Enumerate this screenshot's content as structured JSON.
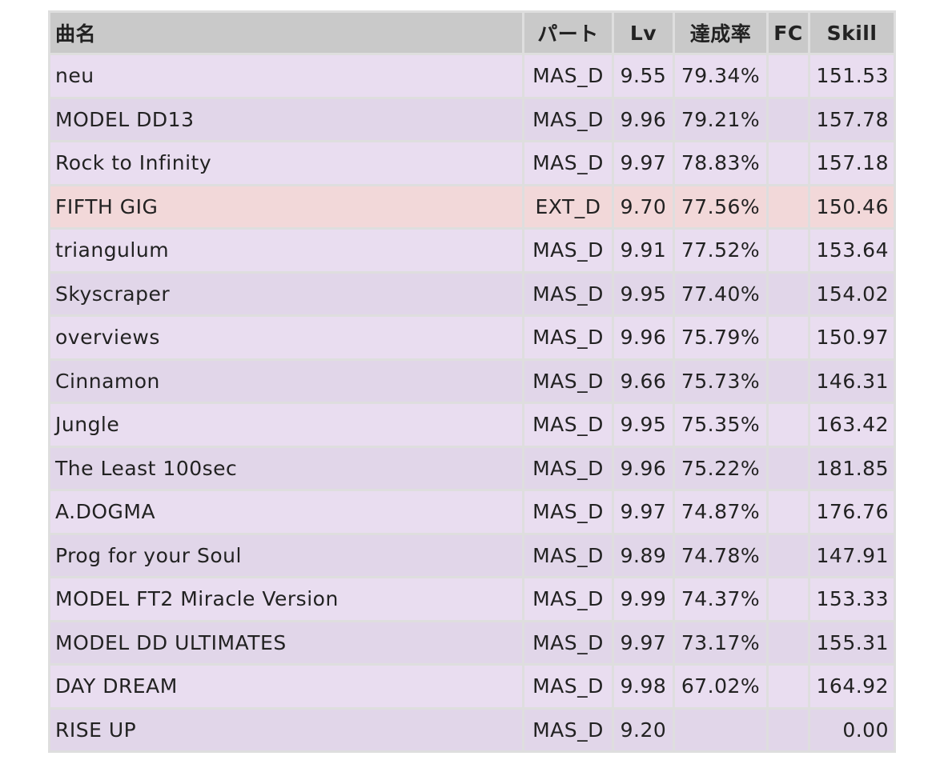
{
  "table": {
    "header": [
      "曲名",
      "パート",
      "Lv",
      "達成率",
      "FC",
      "Skill"
    ],
    "rows": [
      {
        "name": "neu",
        "part": "MAS_D",
        "lv": "9.55",
        "rate": "79.34%",
        "skill": "151.53"
      },
      {
        "name": "MODEL DD13",
        "part": "MAS_D",
        "lv": "9.96",
        "rate": "79.21%",
        "skill": "157.78"
      },
      {
        "name": "Rock to Infinity",
        "part": "MAS_D",
        "lv": "9.97",
        "rate": "78.83%",
        "skill": "157.18"
      },
      {
        "name": "FIFTH GIG",
        "part": "EXT_D",
        "lv": "9.70",
        "rate": "77.56%",
        "skill": "150.46",
        "highlighted": true
      },
      {
        "name": "triangulum",
        "part": "MAS_D",
        "lv": "9.91",
        "rate": "77.52%",
        "skill": "153.64"
      },
      {
        "name": "Skyscraper",
        "part": "MAS_D",
        "lv": "9.95",
        "rate": "77.40%",
        "skill": "154.02"
      },
      {
        "name": "overviews",
        "part": "MAS_D",
        "lv": "9.96",
        "rate": "75.79%",
        "skill": "150.97"
      },
      {
        "name": "Cinnamon",
        "part": "MAS_D",
        "lv": "9.66",
        "rate": "75.73%",
        "skill": "146.31"
      },
      {
        "name": "Jungle",
        "part": "MAS_D",
        "lv": "9.95",
        "rate": "75.35%",
        "skill": "163.42"
      },
      {
        "name": "The Least 100sec",
        "part": "MAS_D",
        "lv": "9.96",
        "rate": "75.22%",
        "skill": "181.85"
      },
      {
        "name": "A.DOGMA",
        "part": "MAS_D",
        "lv": "9.97",
        "rate": "74.87%",
        "skill": "176.76"
      },
      {
        "name": "Prog for your Soul",
        "part": "MAS_D",
        "lv": "9.89",
        "rate": "74.78%",
        "skill": "147.91"
      },
      {
        "name": "MODEL FT2 Miracle Version",
        "part": "MAS_D",
        "lv": "9.99",
        "rate": "74.37%",
        "skill": "153.33"
      },
      {
        "name": "MODEL DD ULTIMATES",
        "part": "MAS_D",
        "lv": "9.97",
        "rate": "73.17%",
        "skill": "155.31"
      },
      {
        "name": "DAY DREAM",
        "part": "MAS_D",
        "lv": "9.98",
        "rate": "67.02%",
        "skill": "164.92"
      },
      {
        "name": "RISE UP",
        "part": "MAS_D",
        "lv": "9.20",
        "skill": "0.00"
      }
    ]
  }
}
